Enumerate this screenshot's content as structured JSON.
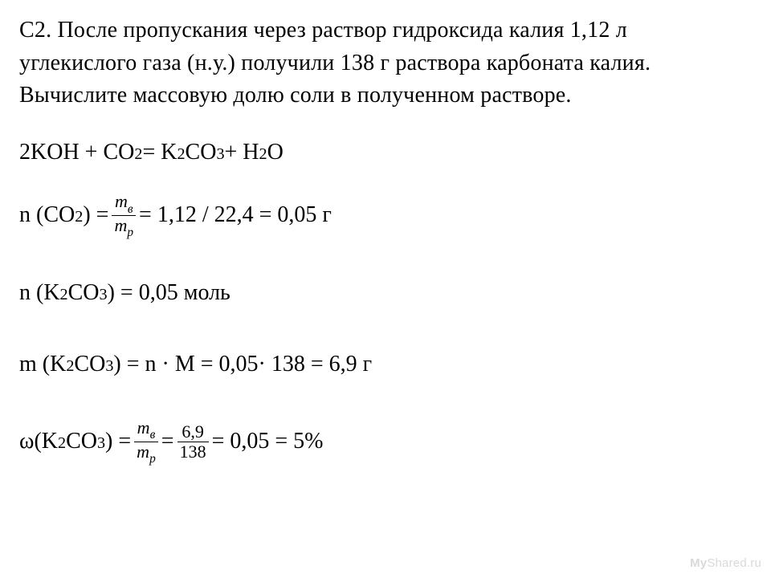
{
  "problem": {
    "l1": "С2. После пропускания через раствор гидроксида калия 1,12 л",
    "l2": "углекислого газа (н.у.) получили 138 г раствора карбоната калия.",
    "l3": "Вычислите массовую долю соли в полученном растворе."
  },
  "reaction": {
    "lead": "2KOH + CO",
    "sub1": "2",
    "mid1": " = K",
    "sub2": "2",
    "mid2": "CO",
    "sub3": "3",
    "mid3": " + H",
    "sub4": "2",
    "tail": "O"
  },
  "frac_sym": {
    "num_m": "m",
    "num_sub": "в",
    "den_m": "m",
    "den_sub": "р"
  },
  "step_n_co2": {
    "pre1": "n (CO",
    "sub1": "2",
    "pre2": ") =  ",
    "after": "  = 1,12 / 22,4 = 0,05 г"
  },
  "step_n_k2co3": {
    "pre1": "n (K",
    "sub1": "2",
    "pre2": "CO",
    "sub2": "3",
    "pre3": ") = 0,05 моль"
  },
  "step_m_k2co3": {
    "pre1": "m (K",
    "sub1": "2",
    "pre2": "CO",
    "sub2": "3",
    "pre3": ") = n · M = 0,05· 138 = 6,9 г"
  },
  "step_omega": {
    "omega": "ω",
    "pre1": " (K",
    "sub1": "2",
    "pre2": "CO",
    "sub2": "3",
    "pre3": ") = ",
    "mid_eq": "  = ",
    "frac2_num": "6,9",
    "frac2_den": "138",
    "tail": " = 0,05 = 5%"
  },
  "watermark": {
    "a": "My",
    "b": "Shared",
    "c": ".ru"
  }
}
